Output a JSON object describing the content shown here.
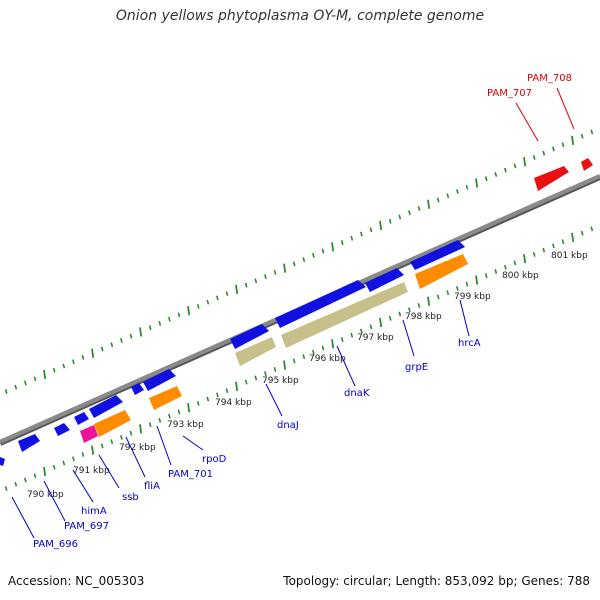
{
  "title": "Onion yellows phytoplasma OY-M, complete genome",
  "footer": {
    "accession": "Accession: NC_005303",
    "summary": "Topology: circular; Length: 853,092 bp; Genes: 788"
  },
  "colors": {
    "backbone": "#8a8a8a",
    "tick": "#2e8b2e",
    "blue_gene": "#1010e0",
    "orange_gene": "#ff8c00",
    "tan_gene": "#c8c08a",
    "magenta_gene": "#ee1199",
    "red_gene": "#e81010",
    "blue_label": "#0000cc",
    "red_label": "#dd0000"
  },
  "kbp_labels": [
    "790 kbp",
    "791 kbp",
    "792 kbp",
    "793 kbp",
    "794 kbp",
    "795 kbp",
    "796 kbp",
    "797 kbp",
    "798 kbp",
    "799 kbp",
    "800 kbp",
    "801 kbp"
  ],
  "blue_labels": [
    "PAM_696",
    "PAM_697",
    "himA",
    "ssb",
    "fliA",
    "PAM_701",
    "rpoD",
    "dnaJ",
    "dnaK",
    "grpE",
    "hrcA"
  ],
  "red_labels": [
    "PAM_707",
    "PAM_708"
  ]
}
